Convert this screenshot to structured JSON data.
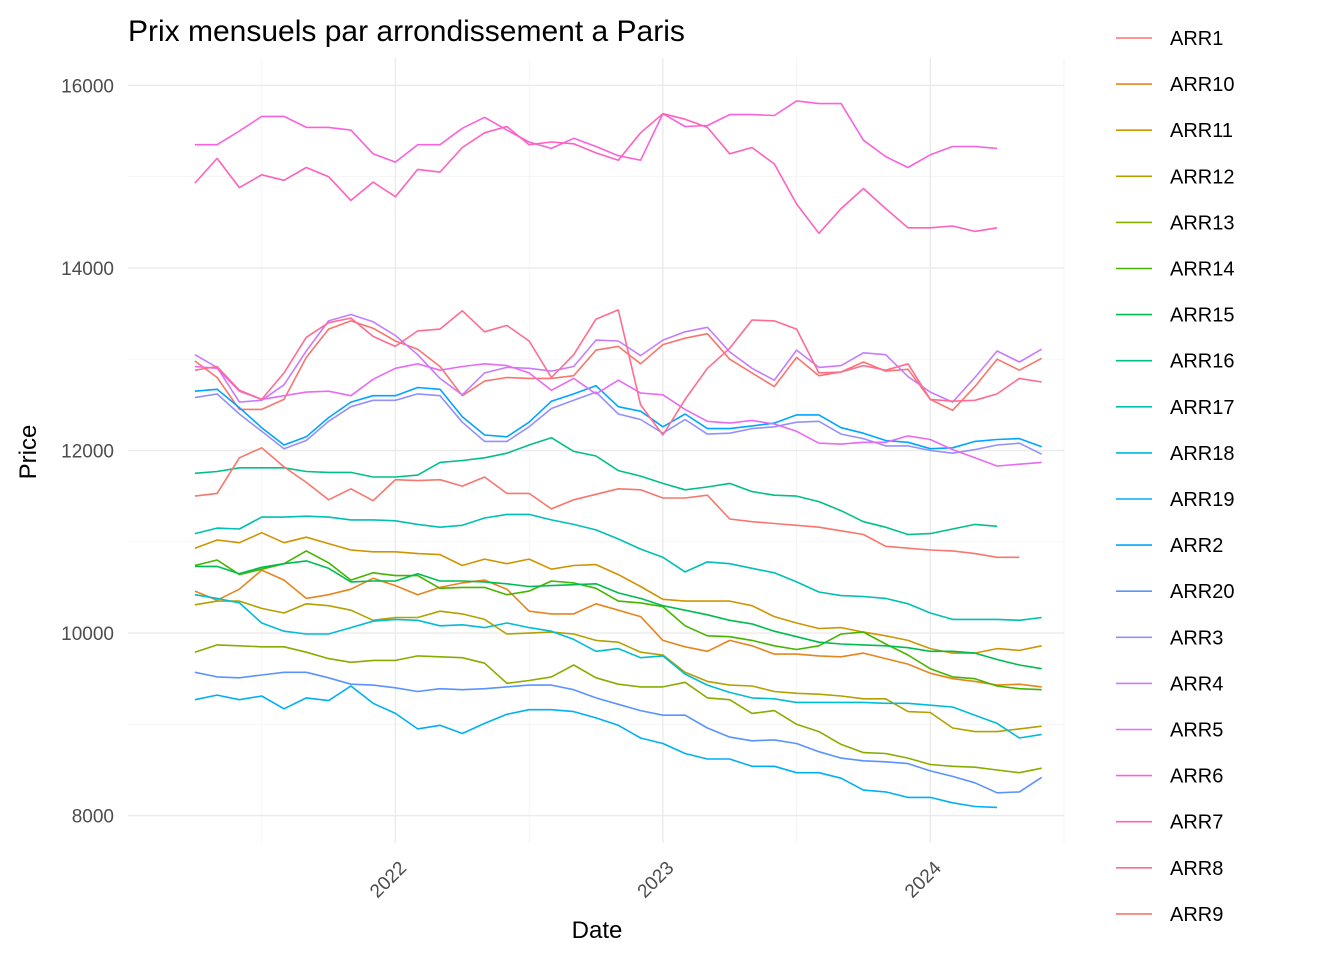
{
  "chart_data": {
    "type": "line",
    "title": "Prix mensuels par arrondissement a Paris",
    "xlabel": "Date",
    "ylabel": "Price",
    "x_start": "2021-04",
    "x_end": "2024-04",
    "xlim": [
      "2021-01",
      "2024-07"
    ],
    "ylim": [
      7700,
      16300
    ],
    "x_ticks": [
      "2022",
      "2023",
      "2024"
    ],
    "y_ticks": [
      8000,
      10000,
      12000,
      14000,
      16000
    ],
    "grid": true,
    "legend_position": "right",
    "series": [
      {
        "name": "ARR1",
        "color": "#F8766D",
        "values": [
          12980,
          12800,
          12450,
          12450,
          12560,
          13020,
          13330,
          13420,
          13340,
          13200,
          13110,
          12920,
          12600,
          12760,
          12800,
          12790,
          12790,
          12820,
          13100,
          13140,
          12950,
          13160,
          13230,
          13280,
          13000,
          12850,
          12700,
          13020,
          12820,
          12860,
          12970,
          12870,
          12890,
          12560,
          12440,
          12700,
          13000,
          12880,
          13010
        ]
      },
      {
        "name": "ARR10",
        "color": "#E7851E",
        "values": [
          10460,
          10360,
          10480,
          10690,
          10580,
          10380,
          10420,
          10480,
          10600,
          10520,
          10420,
          10500,
          10550,
          10580,
          10480,
          10240,
          10210,
          10210,
          10320,
          10250,
          10180,
          9920,
          9850,
          9800,
          9920,
          9860,
          9770,
          9770,
          9750,
          9740,
          9780,
          9720,
          9660,
          9560,
          9500,
          9470,
          9430,
          9440,
          9410
        ]
      },
      {
        "name": "ARR11",
        "color": "#D09400",
        "values": [
          10930,
          11020,
          10990,
          11100,
          10990,
          11050,
          10980,
          10910,
          10890,
          10890,
          10870,
          10860,
          10740,
          10810,
          10760,
          10810,
          10700,
          10740,
          10750,
          10640,
          10510,
          10370,
          10350,
          10350,
          10350,
          10300,
          10180,
          10110,
          10050,
          10060,
          10010,
          9970,
          9920,
          9830,
          9780,
          9780,
          9830,
          9810,
          9860
        ]
      },
      {
        "name": "ARR12",
        "color": "#B2A100",
        "values": [
          10310,
          10350,
          10350,
          10270,
          10220,
          10320,
          10300,
          10250,
          10140,
          10170,
          10170,
          10240,
          10210,
          10150,
          9990,
          10000,
          10010,
          9990,
          9920,
          9900,
          9790,
          9760,
          9570,
          9470,
          9430,
          9420,
          9360,
          9340,
          9330,
          9310,
          9280,
          9280,
          9140,
          9130,
          8960,
          8920,
          8920,
          8950,
          8980
        ]
      },
      {
        "name": "ARR13",
        "color": "#89AC00",
        "values": [
          9790,
          9870,
          9860,
          9850,
          9850,
          9790,
          9720,
          9680,
          9700,
          9700,
          9750,
          9740,
          9730,
          9670,
          9450,
          9480,
          9520,
          9650,
          9510,
          9440,
          9410,
          9410,
          9460,
          9290,
          9270,
          9120,
          9150,
          9000,
          8920,
          8780,
          8690,
          8680,
          8630,
          8560,
          8540,
          8530,
          8500,
          8470,
          8520
        ]
      },
      {
        "name": "ARR14",
        "color": "#45B500",
        "values": [
          10740,
          10800,
          10640,
          10700,
          10760,
          10900,
          10770,
          10580,
          10660,
          10630,
          10630,
          10490,
          10500,
          10500,
          10420,
          10460,
          10570,
          10550,
          10490,
          10350,
          10330,
          10290,
          10080,
          9970,
          9960,
          9920,
          9860,
          9820,
          9860,
          9990,
          10010,
          9880,
          9760,
          9610,
          9520,
          9500,
          9420,
          9390,
          9380
        ]
      },
      {
        "name": "ARR15",
        "color": "#00BC51",
        "values": [
          10730,
          10730,
          10650,
          10720,
          10760,
          10790,
          10710,
          10560,
          10570,
          10570,
          10650,
          10570,
          10570,
          10560,
          10540,
          10510,
          10520,
          10530,
          10540,
          10440,
          10380,
          10300,
          10250,
          10200,
          10140,
          10100,
          10020,
          9960,
          9900,
          9880,
          9870,
          9860,
          9840,
          9800,
          9800,
          9780,
          9710,
          9650,
          9610
        ]
      },
      {
        "name": "ARR16",
        "color": "#00C087",
        "values": [
          11750,
          11770,
          11810,
          11810,
          11810,
          11770,
          11760,
          11760,
          11710,
          11710,
          11730,
          11870,
          11890,
          11920,
          11970,
          12060,
          12140,
          11990,
          11940,
          11780,
          11720,
          11640,
          11570,
          11600,
          11640,
          11550,
          11510,
          11500,
          11440,
          11340,
          11220,
          11160,
          11080,
          11090,
          11140,
          11190,
          11170
        ]
      },
      {
        "name": "ARR17",
        "color": "#00C0B2",
        "values": [
          11090,
          11150,
          11140,
          11270,
          11270,
          11280,
          11270,
          11240,
          11240,
          11230,
          11190,
          11160,
          11180,
          11260,
          11300,
          11300,
          11240,
          11190,
          11130,
          11030,
          10920,
          10830,
          10670,
          10780,
          10760,
          10710,
          10660,
          10560,
          10450,
          10410,
          10400,
          10380,
          10320,
          10220,
          10150,
          10150,
          10150,
          10140,
          10170
        ]
      },
      {
        "name": "ARR18",
        "color": "#00BCD6",
        "values": [
          10420,
          10380,
          10330,
          10110,
          10020,
          9990,
          9990,
          10060,
          10130,
          10150,
          10140,
          10080,
          10090,
          10060,
          10110,
          10060,
          10020,
          9930,
          9800,
          9830,
          9730,
          9750,
          9550,
          9430,
          9350,
          9290,
          9280,
          9240,
          9240,
          9240,
          9240,
          9230,
          9230,
          9210,
          9190,
          9100,
          9010,
          8850,
          8890
        ]
      },
      {
        "name": "ARR19",
        "color": "#00B0F6",
        "values": [
          9270,
          9320,
          9270,
          9310,
          9170,
          9290,
          9260,
          9420,
          9230,
          9120,
          8950,
          8990,
          8900,
          9010,
          9110,
          9160,
          9160,
          9140,
          9070,
          8990,
          8850,
          8790,
          8680,
          8620,
          8620,
          8540,
          8540,
          8470,
          8470,
          8410,
          8280,
          8260,
          8200,
          8200,
          8140,
          8100,
          8090
        ]
      },
      {
        "name": "ARR2",
        "color": "#00A5FF",
        "values": [
          12650,
          12670,
          12470,
          12250,
          12060,
          12150,
          12360,
          12530,
          12600,
          12600,
          12690,
          12670,
          12370,
          12170,
          12150,
          12310,
          12540,
          12620,
          12710,
          12480,
          12430,
          12260,
          12400,
          12240,
          12240,
          12270,
          12300,
          12390,
          12390,
          12250,
          12190,
          12110,
          12090,
          12020,
          12030,
          12100,
          12120,
          12130,
          12040
        ]
      },
      {
        "name": "ARR20",
        "color": "#5A93FF",
        "values": [
          9570,
          9520,
          9510,
          9540,
          9570,
          9570,
          9510,
          9440,
          9430,
          9400,
          9360,
          9390,
          9380,
          9390,
          9410,
          9430,
          9430,
          9380,
          9290,
          9220,
          9150,
          9100,
          9100,
          8960,
          8860,
          8820,
          8830,
          8790,
          8700,
          8630,
          8600,
          8590,
          8570,
          8490,
          8430,
          8360,
          8250,
          8260,
          8420
        ]
      },
      {
        "name": "ARR3",
        "color": "#9590FF",
        "values": [
          12580,
          12620,
          12400,
          12210,
          12020,
          12110,
          12320,
          12480,
          12550,
          12550,
          12620,
          12600,
          12310,
          12100,
          12100,
          12260,
          12460,
          12550,
          12640,
          12400,
          12340,
          12190,
          12340,
          12180,
          12190,
          12240,
          12260,
          12310,
          12320,
          12180,
          12130,
          12050,
          12050,
          12000,
          11970,
          12010,
          12060,
          12080,
          11960
        ]
      },
      {
        "name": "ARR4",
        "color": "#C77CFF",
        "values": [
          13050,
          12910,
          12530,
          12550,
          12720,
          13090,
          13420,
          13490,
          13410,
          13260,
          13050,
          12790,
          12610,
          12850,
          12910,
          12900,
          12870,
          12920,
          13210,
          13200,
          13040,
          13210,
          13300,
          13350,
          13080,
          12900,
          12770,
          13100,
          12910,
          12930,
          13070,
          13050,
          12810,
          12640,
          12530,
          12800,
          13090,
          12970,
          13110
        ]
      },
      {
        "name": "ARR5",
        "color": "#E76BF3",
        "values": [
          12920,
          12900,
          12650,
          12560,
          12600,
          12640,
          12650,
          12600,
          12780,
          12900,
          12950,
          12880,
          12920,
          12950,
          12930,
          12850,
          12660,
          12790,
          12620,
          12770,
          12630,
          12610,
          12450,
          12320,
          12300,
          12330,
          12290,
          12210,
          12080,
          12070,
          12090,
          12090,
          12160,
          12120,
          12010,
          11920,
          11830,
          11850,
          11870
        ]
      },
      {
        "name": "ARR6",
        "color": "#FA62DB",
        "values": [
          15350,
          15350,
          15500,
          15660,
          15660,
          15540,
          15540,
          15510,
          15250,
          15160,
          15350,
          15350,
          15530,
          15650,
          15510,
          15380,
          15310,
          15420,
          15330,
          15230,
          15180,
          15690,
          15550,
          15560,
          15680,
          15680,
          15670,
          15830,
          15800,
          15800,
          15400,
          15220,
          15100,
          15240,
          15330,
          15330,
          15310
        ]
      },
      {
        "name": "ARR7",
        "color": "#FF62BC",
        "values": [
          14930,
          15200,
          14880,
          15020,
          14960,
          15100,
          15000,
          14740,
          14940,
          14780,
          15080,
          15050,
          15320,
          15480,
          15550,
          15350,
          15380,
          15360,
          15260,
          15180,
          15480,
          15690,
          15630,
          15540,
          15250,
          15320,
          15140,
          14700,
          14380,
          14650,
          14870,
          14650,
          14440,
          14440,
          14460,
          14400,
          14440
        ]
      },
      {
        "name": "ARR8",
        "color": "#FF6C91",
        "values": [
          12880,
          12920,
          12660,
          12560,
          12850,
          13240,
          13400,
          13450,
          13250,
          13140,
          13310,
          13330,
          13530,
          13300,
          13370,
          13200,
          12800,
          13050,
          13440,
          13540,
          12500,
          12170,
          12560,
          12900,
          13120,
          13430,
          13420,
          13330,
          12850,
          12860,
          12930,
          12880,
          12950,
          12560,
          12540,
          12550,
          12620,
          12790,
          12750
        ]
      },
      {
        "name": "ARR9",
        "color": "#F8766D",
        "values": [
          11500,
          11530,
          11920,
          12030,
          11820,
          11650,
          11460,
          11580,
          11450,
          11680,
          11670,
          11680,
          11610,
          11710,
          11530,
          11530,
          11360,
          11460,
          11520,
          11580,
          11570,
          11480,
          11480,
          11510,
          11250,
          11220,
          11200,
          11180,
          11160,
          11120,
          11080,
          10950,
          10930,
          10910,
          10900,
          10870,
          10830,
          10830
        ]
      }
    ]
  }
}
